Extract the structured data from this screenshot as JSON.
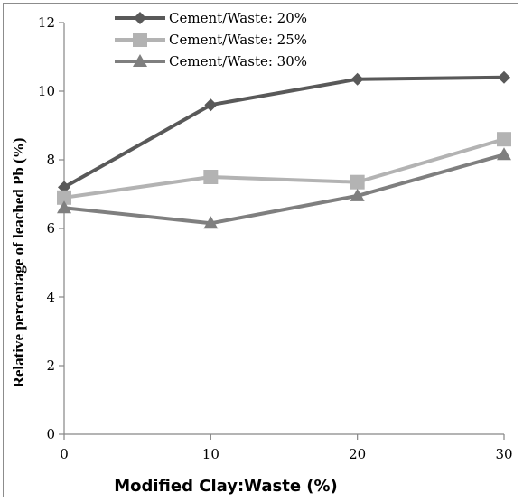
{
  "chart_data": {
    "type": "line",
    "title": "",
    "xlabel": "Modified Clay:Waste (%)",
    "ylabel": "Relative percentage of leached Pb (%)",
    "x": [
      0,
      10,
      20,
      30
    ],
    "xticks": [
      "0",
      "10",
      "20",
      "30"
    ],
    "yticks": [
      "0",
      "2",
      "4",
      "6",
      "8",
      "10",
      "12"
    ],
    "xlim": [
      0,
      30
    ],
    "ylim": [
      0,
      12
    ],
    "grid": false,
    "legend_position": "top-left",
    "series": [
      {
        "name": "Cement/Waste: 20%",
        "values": [
          7.2,
          9.6,
          10.35,
          10.4
        ],
        "marker": "diamond",
        "color": "#595959"
      },
      {
        "name": "Cement/Waste: 25%",
        "values": [
          6.9,
          7.5,
          7.35,
          8.6
        ],
        "marker": "square",
        "color": "#b3b3b3"
      },
      {
        "name": "Cement/Waste: 30%",
        "values": [
          6.6,
          6.15,
          6.95,
          8.15
        ],
        "marker": "triangle",
        "color": "#7f7f7f"
      }
    ]
  }
}
